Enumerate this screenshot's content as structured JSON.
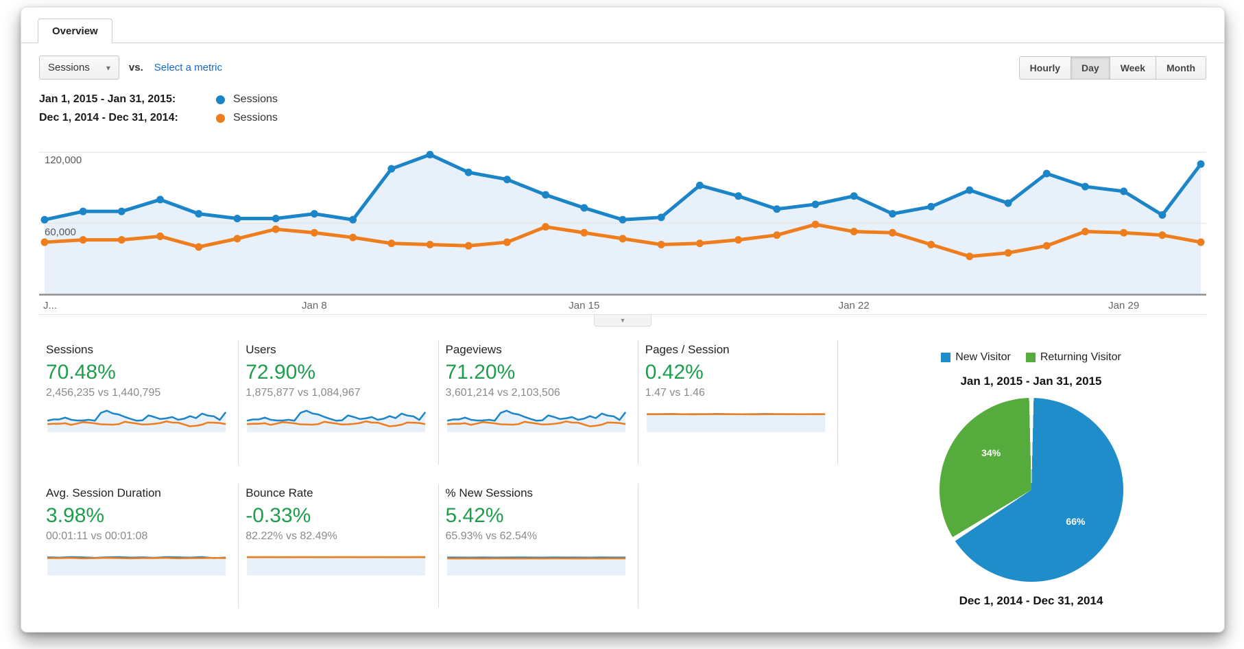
{
  "tab": {
    "overview": "Overview"
  },
  "toolbar": {
    "metric_selector": "Sessions",
    "vs": "vs.",
    "select_metric": "Select a metric",
    "granularity": [
      "Hourly",
      "Day",
      "Week",
      "Month"
    ],
    "granularity_active": "Day"
  },
  "icons": {
    "caret_down": "▾",
    "collapse_arrow": "▼"
  },
  "legend": [
    {
      "range": "Jan 1, 2015 - Jan 31, 2015:",
      "series": "Sessions",
      "color": "#1c85c7"
    },
    {
      "range": "Dec 1, 2014 - Dec 31, 2014:",
      "series": "Sessions",
      "color": "#ee7d1e"
    }
  ],
  "chart_data": {
    "type": "line",
    "x": [
      1,
      2,
      3,
      4,
      5,
      6,
      7,
      8,
      9,
      10,
      11,
      12,
      13,
      14,
      15,
      16,
      17,
      18,
      19,
      20,
      21,
      22,
      23,
      24,
      25,
      26,
      27,
      28,
      29,
      30,
      31
    ],
    "series": [
      {
        "name": "Sessions (Jan 1, 2015 - Jan 31, 2015)",
        "color": "#1c85c7",
        "values": [
          63000,
          70000,
          70000,
          80000,
          68000,
          64000,
          64000,
          68000,
          63000,
          106000,
          118000,
          103000,
          97000,
          84000,
          73000,
          63000,
          65000,
          92000,
          83000,
          72000,
          76000,
          83000,
          68000,
          74000,
          88000,
          77000,
          102000,
          91000,
          87000,
          67000,
          110000
        ]
      },
      {
        "name": "Sessions (Dec 1, 2014 - Dec 31, 2014)",
        "color": "#ee7d1e",
        "values": [
          44000,
          46000,
          46000,
          49000,
          40000,
          47000,
          55000,
          52000,
          48000,
          43000,
          42000,
          41000,
          44000,
          57000,
          52000,
          47000,
          42000,
          43000,
          46000,
          50000,
          59000,
          53000,
          52000,
          42000,
          32000,
          35000,
          41000,
          53000,
          52000,
          50000,
          44000
        ]
      }
    ],
    "ylim": [
      0,
      135000
    ],
    "yticks": [
      {
        "value": 60000,
        "label": "60,000"
      },
      {
        "value": 120000,
        "label": "120,000"
      }
    ],
    "xticks": [
      {
        "day": 1,
        "label": "J..."
      },
      {
        "day": 8,
        "label": "Jan 8"
      },
      {
        "day": 15,
        "label": "Jan 15"
      },
      {
        "day": 22,
        "label": "Jan 22"
      },
      {
        "day": 29,
        "label": "Jan 29"
      }
    ],
    "grid": true,
    "markers": true,
    "legend_position": "top-left"
  },
  "metrics": [
    {
      "label": "Sessions",
      "delta": "70.48%",
      "comparison": "2,456,235 vs 1,440,795",
      "spark": {
        "use_main": true
      }
    },
    {
      "label": "Users",
      "delta": "72.90%",
      "comparison": "1,875,877 vs 1,084,967",
      "spark": {
        "use_main": true
      }
    },
    {
      "label": "Pageviews",
      "delta": "71.20%",
      "comparison": "3,601,214 vs 2,103,506",
      "spark": {
        "use_main": true
      }
    },
    {
      "label": "Pages / Session",
      "delta": "0.42%",
      "comparison": "1.47 vs 1.46",
      "spark": {
        "ymax": 2.0,
        "blue": [
          1.47,
          1.47,
          1.48,
          1.46,
          1.47,
          1.47,
          1.48,
          1.47,
          1.46,
          1.47,
          1.48,
          1.47,
          1.47,
          1.46,
          1.47,
          1.47
        ],
        "orange": [
          1.46,
          1.46,
          1.47,
          1.46,
          1.45,
          1.46,
          1.47,
          1.46,
          1.46,
          1.45,
          1.46,
          1.47,
          1.46,
          1.46,
          1.46,
          1.46
        ]
      }
    },
    {
      "label": "Avg. Session Duration",
      "delta": "3.98%",
      "comparison": "00:01:11 vs 00:01:08",
      "spark": {
        "ymax": 96,
        "blue": [
          71,
          70,
          72,
          71,
          69,
          71,
          72,
          70,
          71,
          69,
          72,
          71,
          70,
          72,
          68,
          70
        ],
        "orange": [
          68,
          68,
          69,
          67,
          68,
          69,
          68,
          67,
          68,
          68,
          69,
          67,
          68,
          68,
          69,
          68
        ]
      }
    },
    {
      "label": "Bounce Rate",
      "delta": "-0.33%",
      "comparison": "82.22% vs 82.49%",
      "spark": {
        "ymax": 110,
        "blue": [
          82.2,
          82.1,
          82.4,
          81.9,
          82.3,
          82.2,
          82.0,
          82.4,
          82.2,
          82.1,
          82.3,
          82.2,
          82.0,
          82.3,
          82.1,
          82.2
        ],
        "orange": [
          82.5,
          82.4,
          82.6,
          82.5,
          82.4,
          82.5,
          82.6,
          82.4,
          82.5,
          82.5,
          82.4,
          82.6,
          82.5,
          82.4,
          82.5,
          82.5
        ]
      }
    },
    {
      "label": "% New Sessions",
      "delta": "5.42%",
      "comparison": "65.93% vs 62.54%",
      "spark": {
        "ymax": 90,
        "blue": [
          65.9,
          66.1,
          65.7,
          66.3,
          65.8,
          66.0,
          66.4,
          65.9,
          65.6,
          66.2,
          65.9,
          66.1,
          65.8,
          66.3,
          66.0,
          65.9
        ],
        "orange": [
          62.5,
          62.4,
          62.7,
          62.3,
          62.6,
          62.5,
          62.2,
          62.6,
          62.4,
          62.5,
          62.7,
          62.3,
          62.5,
          62.4,
          62.6,
          62.5
        ]
      }
    }
  ],
  "pie": {
    "legend": [
      {
        "label": "New Visitor",
        "color": "#1f8dc9"
      },
      {
        "label": "Returning Visitor",
        "color": "#55ab3b"
      }
    ],
    "title": "Jan 1, 2015 - Jan 31, 2015",
    "caption": "Dec 1, 2014 - Dec 31, 2014",
    "slices": [
      {
        "label": "New Visitor",
        "pct": 66,
        "pct_label": "66%",
        "color": "#1f8dc9"
      },
      {
        "label": "Returning Visitor",
        "pct": 34,
        "pct_label": "34%",
        "color": "#55ab3b"
      }
    ]
  },
  "colors": {
    "blue": "#1c85c7",
    "orange": "#ee7d1e",
    "area_fill": "#e8f1f9",
    "grid": "#e6e6e6",
    "baseline": "#8f8f8f",
    "delta_green": "#1e9e4c",
    "pie_blue": "#1f8dc9",
    "pie_green": "#55ab3b",
    "link_blue": "#1569c7"
  }
}
